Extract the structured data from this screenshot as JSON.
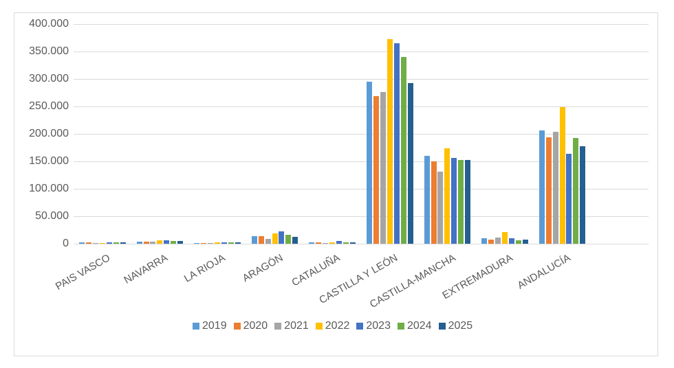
{
  "chart_data": {
    "type": "bar",
    "title": "",
    "xlabel": "",
    "ylabel": "",
    "ylim": [
      0,
      400000
    ],
    "yticks": [
      "0",
      "50.000",
      "100.000",
      "150.000",
      "200.000",
      "250.000",
      "300.000",
      "350.000",
      "400.000"
    ],
    "grid": true,
    "legend_position": "bottom",
    "categories": [
      "PAIS VASCO",
      "NAVARRA",
      "LA RIOJA",
      "ARAGÓN",
      "CATALUÑA",
      "CASTILLA Y LEÓN",
      "CASTILLA-MANCHA",
      "EXTREMADURA",
      "ANDALUCÍA",
      ""
    ],
    "series": [
      {
        "name": "2019",
        "color": "#5B9BD5",
        "values": [
          2000,
          4000,
          1000,
          14000,
          3000,
          295000,
          160000,
          10000,
          206000,
          null
        ]
      },
      {
        "name": "2020",
        "color": "#ED7D31",
        "values": [
          2000,
          4000,
          1000,
          14000,
          2000,
          269000,
          150000,
          8000,
          194000,
          null
        ]
      },
      {
        "name": "2021",
        "color": "#A5A5A5",
        "values": [
          500,
          4000,
          1000,
          9000,
          500,
          276000,
          131000,
          11000,
          204000,
          null
        ]
      },
      {
        "name": "2022",
        "color": "#FFC000",
        "values": [
          1000,
          6000,
          2000,
          19000,
          2000,
          373000,
          174000,
          21000,
          249000,
          null
        ]
      },
      {
        "name": "2023",
        "color": "#4472C4",
        "values": [
          3000,
          6000,
          2000,
          23000,
          5000,
          365000,
          156000,
          10000,
          164000,
          null
        ]
      },
      {
        "name": "2024",
        "color": "#70AD47",
        "values": [
          3000,
          5000,
          2000,
          16000,
          2000,
          340000,
          152000,
          6000,
          192000,
          null
        ]
      },
      {
        "name": "2025",
        "color": "#255E91",
        "values": [
          2000,
          5000,
          2000,
          13000,
          3000,
          293000,
          152000,
          8000,
          178000,
          null
        ]
      }
    ]
  }
}
